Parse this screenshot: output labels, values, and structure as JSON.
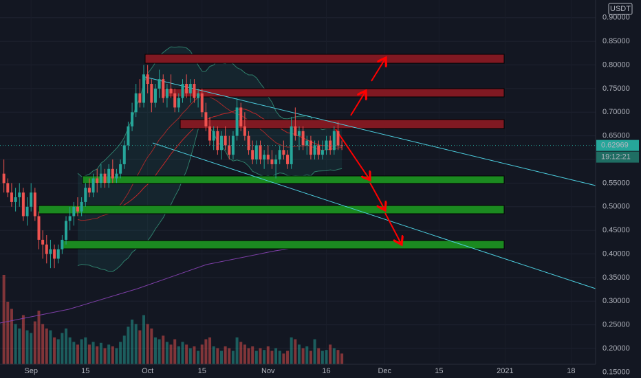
{
  "chart_data": {
    "type": "candlestick",
    "currency": "USDT",
    "last_price": 0.62969,
    "countdown": "19:12:21",
    "up_color": "#26a69a",
    "down_color": "#ef5350",
    "xlim": [
      0,
      153.3
    ],
    "ylim": [
      0.1375,
      0.9375
    ],
    "yticks": [
      {
        "value": 0.15,
        "label": "0.15000"
      },
      {
        "value": 0.2,
        "label": "0.20000"
      },
      {
        "value": 0.25,
        "label": "0.25000"
      },
      {
        "value": 0.3,
        "label": "0.30000"
      },
      {
        "value": 0.35,
        "label": "0.35000"
      },
      {
        "value": 0.4,
        "label": "0.40000"
      },
      {
        "value": 0.45,
        "label": "0.45000"
      },
      {
        "value": 0.5,
        "label": "0.50000"
      },
      {
        "value": 0.55,
        "label": "0.55000"
      },
      {
        "value": 0.6,
        "label": "0.60000"
      },
      {
        "value": 0.65,
        "label": "0.65000"
      },
      {
        "value": 0.7,
        "label": "0.70000"
      },
      {
        "value": 0.75,
        "label": "0.75000"
      },
      {
        "value": 0.8,
        "label": "0.80000"
      },
      {
        "value": 0.85,
        "label": "0.85000"
      },
      {
        "value": 0.9,
        "label": "0.90000"
      }
    ],
    "xticks": [
      {
        "value": 8,
        "label": "Sep"
      },
      {
        "value": 22,
        "label": "15"
      },
      {
        "value": 38,
        "label": "Oct"
      },
      {
        "value": 52,
        "label": "15"
      },
      {
        "value": 69,
        "label": "Nov"
      },
      {
        "value": 84,
        "label": "16"
      },
      {
        "value": 99,
        "label": "Dec"
      },
      {
        "value": 113,
        "label": "15"
      },
      {
        "value": 130,
        "label": "2021"
      },
      {
        "value": 147,
        "label": "18"
      }
    ],
    "x": [
      1,
      2,
      3,
      4,
      5,
      6,
      7,
      8,
      9,
      10,
      11,
      12,
      13,
      14,
      15,
      16,
      17,
      18,
      19,
      20,
      21,
      22,
      23,
      24,
      25,
      26,
      27,
      28,
      29,
      30,
      31,
      32,
      33,
      34,
      35,
      36,
      37,
      38,
      39,
      40,
      41,
      42,
      43,
      44,
      45,
      46,
      47,
      48,
      49,
      50,
      51,
      52,
      53,
      54,
      55,
      56,
      57,
      58,
      59,
      60,
      61,
      62,
      63,
      64,
      65,
      66,
      67,
      68,
      69,
      70,
      71,
      72,
      73,
      74,
      75,
      76,
      77,
      78,
      79,
      80,
      81,
      82,
      83,
      84,
      85,
      86,
      87,
      88
    ],
    "ohlc": [
      [
        0.57,
        0.6,
        0.53,
        0.55
      ],
      [
        0.55,
        0.56,
        0.52,
        0.53
      ],
      [
        0.53,
        0.55,
        0.5,
        0.51
      ],
      [
        0.51,
        0.54,
        0.49,
        0.52
      ],
      [
        0.52,
        0.55,
        0.5,
        0.53
      ],
      [
        0.53,
        0.54,
        0.47,
        0.48
      ],
      [
        0.48,
        0.52,
        0.46,
        0.5
      ],
      [
        0.5,
        0.55,
        0.49,
        0.53
      ],
      [
        0.53,
        0.54,
        0.47,
        0.48
      ],
      [
        0.48,
        0.49,
        0.41,
        0.43
      ],
      [
        0.43,
        0.45,
        0.39,
        0.42
      ],
      [
        0.42,
        0.44,
        0.38,
        0.4
      ],
      [
        0.4,
        0.43,
        0.37,
        0.41
      ],
      [
        0.41,
        0.42,
        0.37,
        0.39
      ],
      [
        0.39,
        0.42,
        0.38,
        0.41
      ],
      [
        0.41,
        0.44,
        0.4,
        0.43
      ],
      [
        0.43,
        0.48,
        0.42,
        0.47
      ],
      [
        0.47,
        0.5,
        0.45,
        0.48
      ],
      [
        0.48,
        0.51,
        0.46,
        0.5
      ],
      [
        0.5,
        0.52,
        0.48,
        0.49
      ],
      [
        0.49,
        0.52,
        0.48,
        0.51
      ],
      [
        0.51,
        0.55,
        0.5,
        0.54
      ],
      [
        0.54,
        0.56,
        0.52,
        0.53
      ],
      [
        0.53,
        0.57,
        0.52,
        0.56
      ],
      [
        0.56,
        0.58,
        0.53,
        0.55
      ],
      [
        0.55,
        0.59,
        0.54,
        0.57
      ],
      [
        0.57,
        0.58,
        0.54,
        0.55
      ],
      [
        0.55,
        0.59,
        0.54,
        0.58
      ],
      [
        0.58,
        0.6,
        0.55,
        0.56
      ],
      [
        0.56,
        0.58,
        0.55,
        0.57
      ],
      [
        0.57,
        0.6,
        0.56,
        0.59
      ],
      [
        0.59,
        0.64,
        0.58,
        0.63
      ],
      [
        0.63,
        0.68,
        0.62,
        0.67
      ],
      [
        0.67,
        0.72,
        0.66,
        0.7
      ],
      [
        0.7,
        0.76,
        0.69,
        0.74
      ],
      [
        0.74,
        0.77,
        0.71,
        0.72
      ],
      [
        0.72,
        0.8,
        0.71,
        0.78
      ],
      [
        0.78,
        0.8,
        0.74,
        0.76
      ],
      [
        0.76,
        0.77,
        0.7,
        0.72
      ],
      [
        0.72,
        0.76,
        0.71,
        0.75
      ],
      [
        0.75,
        0.79,
        0.73,
        0.77
      ],
      [
        0.77,
        0.78,
        0.72,
        0.73
      ],
      [
        0.73,
        0.76,
        0.71,
        0.75
      ],
      [
        0.75,
        0.78,
        0.73,
        0.74
      ],
      [
        0.74,
        0.75,
        0.7,
        0.71
      ],
      [
        0.71,
        0.74,
        0.7,
        0.73
      ],
      [
        0.73,
        0.77,
        0.72,
        0.76
      ],
      [
        0.76,
        0.78,
        0.73,
        0.74
      ],
      [
        0.74,
        0.77,
        0.72,
        0.76
      ],
      [
        0.76,
        0.77,
        0.72,
        0.73
      ],
      [
        0.73,
        0.75,
        0.71,
        0.74
      ],
      [
        0.74,
        0.75,
        0.69,
        0.7
      ],
      [
        0.7,
        0.72,
        0.66,
        0.67
      ],
      [
        0.67,
        0.69,
        0.63,
        0.64
      ],
      [
        0.64,
        0.67,
        0.62,
        0.66
      ],
      [
        0.66,
        0.67,
        0.61,
        0.62
      ],
      [
        0.62,
        0.66,
        0.6,
        0.65
      ],
      [
        0.65,
        0.67,
        0.62,
        0.63
      ],
      [
        0.63,
        0.65,
        0.6,
        0.61
      ],
      [
        0.61,
        0.66,
        0.6,
        0.65
      ],
      [
        0.65,
        0.73,
        0.64,
        0.71
      ],
      [
        0.71,
        0.72,
        0.66,
        0.67
      ],
      [
        0.67,
        0.7,
        0.64,
        0.65
      ],
      [
        0.65,
        0.66,
        0.61,
        0.62
      ],
      [
        0.62,
        0.64,
        0.59,
        0.6
      ],
      [
        0.6,
        0.64,
        0.59,
        0.63
      ],
      [
        0.63,
        0.64,
        0.59,
        0.6
      ],
      [
        0.6,
        0.62,
        0.58,
        0.61
      ],
      [
        0.61,
        0.63,
        0.59,
        0.6
      ],
      [
        0.6,
        0.62,
        0.58,
        0.59
      ],
      [
        0.59,
        0.61,
        0.56,
        0.6
      ],
      [
        0.6,
        0.63,
        0.59,
        0.62
      ],
      [
        0.62,
        0.64,
        0.6,
        0.61
      ],
      [
        0.61,
        0.62,
        0.58,
        0.59
      ],
      [
        0.59,
        0.69,
        0.58,
        0.67
      ],
      [
        0.67,
        0.71,
        0.64,
        0.65
      ],
      [
        0.65,
        0.67,
        0.62,
        0.66
      ],
      [
        0.66,
        0.67,
        0.62,
        0.63
      ],
      [
        0.63,
        0.65,
        0.61,
        0.64
      ],
      [
        0.64,
        0.65,
        0.6,
        0.61
      ],
      [
        0.61,
        0.64,
        0.6,
        0.63
      ],
      [
        0.63,
        0.64,
        0.6,
        0.61
      ],
      [
        0.61,
        0.64,
        0.6,
        0.62
      ],
      [
        0.62,
        0.65,
        0.61,
        0.64
      ],
      [
        0.64,
        0.65,
        0.61,
        0.62
      ],
      [
        0.62,
        0.67,
        0.61,
        0.66
      ],
      [
        0.66,
        0.68,
        0.62,
        0.63
      ],
      [
        0.63,
        0.64,
        0.62,
        0.62969
      ]
    ],
    "volume_lim": [
      0,
      100
    ],
    "volume": [
      100,
      70,
      62,
      45,
      40,
      55,
      38,
      35,
      48,
      60,
      45,
      40,
      38,
      30,
      28,
      35,
      40,
      30,
      25,
      22,
      28,
      30,
      22,
      25,
      20,
      24,
      18,
      22,
      20,
      18,
      25,
      32,
      42,
      50,
      45,
      38,
      55,
      45,
      40,
      30,
      28,
      32,
      25,
      22,
      28,
      20,
      25,
      22,
      18,
      20,
      15,
      22,
      28,
      30,
      20,
      18,
      15,
      20,
      18,
      15,
      30,
      25,
      22,
      18,
      20,
      15,
      18,
      16,
      20,
      15,
      18,
      15,
      12,
      15,
      30,
      28,
      22,
      18,
      20,
      15,
      28,
      18,
      15,
      16,
      22,
      18,
      16,
      12
    ]
  }
}
